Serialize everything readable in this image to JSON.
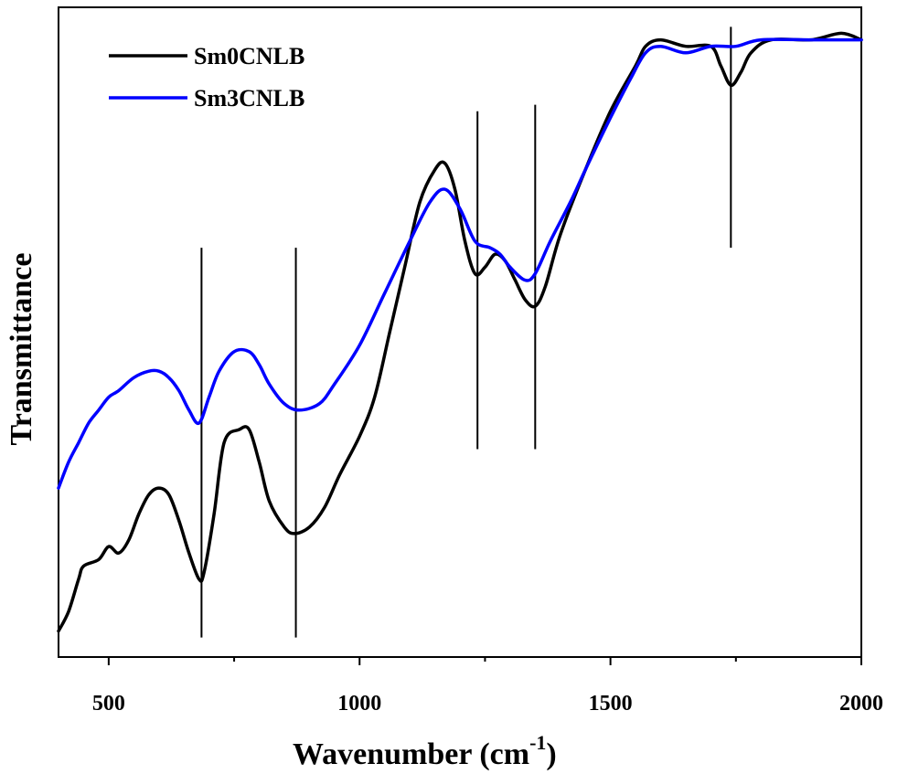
{
  "chart_data": {
    "type": "line",
    "title": "",
    "xlabel": "Wavenumber (cm",
    "xlabel_suffix": ")",
    "xlabel_superscript": "-1",
    "ylabel": "Transmittance",
    "xlim": [
      400,
      2000
    ],
    "ylim": [
      0,
      100
    ],
    "xticks": [
      500,
      1000,
      1500,
      2000
    ],
    "xtick_labels": [
      "500",
      "1000",
      "1500",
      "2000"
    ],
    "yticks_shown": false,
    "legend_position": "top-left",
    "series": [
      {
        "name": "Sm0CNLB",
        "color": "#000000",
        "points": [
          [
            400,
            4
          ],
          [
            420,
            7
          ],
          [
            440,
            12
          ],
          [
            450,
            14
          ],
          [
            480,
            15
          ],
          [
            500,
            17
          ],
          [
            520,
            16
          ],
          [
            540,
            18
          ],
          [
            560,
            22
          ],
          [
            580,
            25
          ],
          [
            600,
            26
          ],
          [
            620,
            25
          ],
          [
            640,
            21
          ],
          [
            660,
            16
          ],
          [
            680,
            12
          ],
          [
            690,
            13
          ],
          [
            710,
            22
          ],
          [
            730,
            33
          ],
          [
            760,
            35
          ],
          [
            780,
            35
          ],
          [
            800,
            30
          ],
          [
            820,
            24
          ],
          [
            850,
            20
          ],
          [
            870,
            19
          ],
          [
            900,
            20
          ],
          [
            930,
            23
          ],
          [
            960,
            28
          ],
          [
            1000,
            34
          ],
          [
            1030,
            40
          ],
          [
            1060,
            50
          ],
          [
            1090,
            60
          ],
          [
            1120,
            70
          ],
          [
            1150,
            75
          ],
          [
            1170,
            76
          ],
          [
            1190,
            72
          ],
          [
            1210,
            64
          ],
          [
            1230,
            59
          ],
          [
            1250,
            60
          ],
          [
            1270,
            62
          ],
          [
            1290,
            61
          ],
          [
            1310,
            58
          ],
          [
            1330,
            55
          ],
          [
            1350,
            54
          ],
          [
            1370,
            57
          ],
          [
            1400,
            65
          ],
          [
            1450,
            75
          ],
          [
            1500,
            84
          ],
          [
            1550,
            91
          ],
          [
            1570,
            94
          ],
          [
            1600,
            95
          ],
          [
            1650,
            94
          ],
          [
            1700,
            94
          ],
          [
            1720,
            91
          ],
          [
            1740,
            88
          ],
          [
            1760,
            90
          ],
          [
            1780,
            93
          ],
          [
            1820,
            95
          ],
          [
            1900,
            95
          ],
          [
            1960,
            96
          ],
          [
            2000,
            95
          ]
        ]
      },
      {
        "name": "Sm3CNLB",
        "color": "#0000ff",
        "points": [
          [
            400,
            26
          ],
          [
            420,
            30
          ],
          [
            440,
            33
          ],
          [
            460,
            36
          ],
          [
            480,
            38
          ],
          [
            500,
            40
          ],
          [
            520,
            41
          ],
          [
            550,
            43
          ],
          [
            580,
            44
          ],
          [
            600,
            44
          ],
          [
            620,
            43
          ],
          [
            640,
            41
          ],
          [
            660,
            38
          ],
          [
            680,
            36
          ],
          [
            700,
            40
          ],
          [
            720,
            44
          ],
          [
            750,
            47
          ],
          [
            780,
            47
          ],
          [
            800,
            45
          ],
          [
            820,
            42
          ],
          [
            850,
            39
          ],
          [
            880,
            38
          ],
          [
            920,
            39
          ],
          [
            950,
            42
          ],
          [
            1000,
            48
          ],
          [
            1050,
            56
          ],
          [
            1100,
            64
          ],
          [
            1140,
            70
          ],
          [
            1170,
            72
          ],
          [
            1200,
            69
          ],
          [
            1230,
            64
          ],
          [
            1260,
            63
          ],
          [
            1280,
            62
          ],
          [
            1300,
            60
          ],
          [
            1330,
            58
          ],
          [
            1350,
            59
          ],
          [
            1380,
            64
          ],
          [
            1420,
            70
          ],
          [
            1450,
            75
          ],
          [
            1500,
            83
          ],
          [
            1540,
            89
          ],
          [
            1570,
            93
          ],
          [
            1600,
            94
          ],
          [
            1650,
            93
          ],
          [
            1700,
            94
          ],
          [
            1750,
            94
          ],
          [
            1800,
            95
          ],
          [
            1900,
            95
          ],
          [
            1950,
            95
          ],
          [
            2000,
            95
          ]
        ]
      }
    ],
    "vertical_markers": [
      {
        "x": 685,
        "y_range": [
          3,
          63
        ]
      },
      {
        "x": 873,
        "y_range": [
          3,
          63
        ]
      },
      {
        "x": 1235,
        "y_range": [
          32,
          84
        ]
      },
      {
        "x": 1350,
        "y_range": [
          32,
          85
        ]
      },
      {
        "x": 1740,
        "y_range": [
          63,
          97
        ]
      }
    ]
  }
}
